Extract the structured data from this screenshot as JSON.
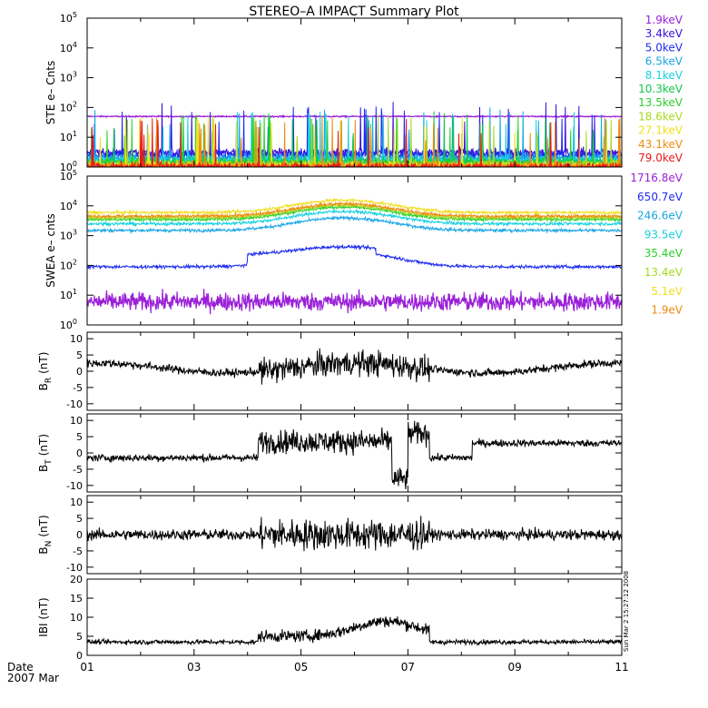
{
  "title": "STEREO–A IMPACT Summary Plot",
  "date_label": "Date",
  "month_label": "2007 Mar",
  "x_ticks": [
    "01",
    "03",
    "05",
    "07",
    "09",
    "11"
  ],
  "x_range_days": [
    1,
    11
  ],
  "timestamp": "Sun Mar  2 15:27:12 2008",
  "colors": {
    "axis": "#000000",
    "trace": "#000000",
    "background": "#ffffff"
  },
  "chart_data": [
    {
      "id": "ste",
      "type": "line",
      "ylabel": "STE e– Cnts",
      "log": true,
      "ylim_exp": [
        0,
        5
      ],
      "tick_exps": [
        0,
        1,
        2,
        3,
        4,
        5
      ],
      "series": [
        {
          "name": "1.9keV",
          "color": "#9a1fd8",
          "base": 50
        },
        {
          "name": "3.4keV",
          "color": "#3a10d8",
          "base": 3
        },
        {
          "name": "5.0keV",
          "color": "#1d2cf0",
          "base": 2.5
        },
        {
          "name": "6.5keV",
          "color": "#1aa6e6",
          "base": 2
        },
        {
          "name": "8.1keV",
          "color": "#18d0e0",
          "base": 1.7
        },
        {
          "name": "10.3keV",
          "color": "#12c84a",
          "base": 1.5
        },
        {
          "name": "13.5keV",
          "color": "#2ad02a",
          "base": 1.3
        },
        {
          "name": "18.6keV",
          "color": "#a8d820",
          "base": 1.2
        },
        {
          "name": "27.1keV",
          "color": "#f0e020",
          "base": 1.1
        },
        {
          "name": "43.1keV",
          "color": "#f08a10",
          "base": 1.05
        },
        {
          "name": "79.0keV",
          "color": "#e81818",
          "base": 1.0
        }
      ]
    },
    {
      "id": "swea",
      "type": "line",
      "ylabel": "SWEA e– cnts",
      "log": true,
      "ylim_exp": [
        0,
        5
      ],
      "tick_exps": [
        0,
        1,
        2,
        3,
        4,
        5
      ],
      "series": [
        {
          "name": "1716.8eV",
          "color": "#9a1fd8",
          "base": 6
        },
        {
          "name": "650.7eV",
          "color": "#1d2cf0",
          "base": 90
        },
        {
          "name": "246.6eV",
          "color": "#1aa6e6",
          "base": 1500
        },
        {
          "name": "93.5eV",
          "color": "#18d0e0",
          "base": 2500
        },
        {
          "name": "35.4eV",
          "color": "#2ad02a",
          "base": 3500
        },
        {
          "name": "13.4eV",
          "color": "#a8d820",
          "base": 4000
        },
        {
          "name": "5.1eV",
          "color": "#f0e020",
          "base": 6000
        },
        {
          "name": "1.9eV",
          "color": "#f08a10",
          "base": 4500
        }
      ]
    },
    {
      "id": "br",
      "type": "line",
      "ylabel": "B",
      "ylabel_sub": "R",
      "ylabel_unit": "(nT)",
      "ylim": [
        -12,
        12
      ],
      "ticks": [
        "10",
        "5",
        "0",
        "-5",
        "-10"
      ],
      "tick_values": [
        10,
        5,
        0,
        -5,
        -10
      ]
    },
    {
      "id": "bt",
      "type": "line",
      "ylabel": "B",
      "ylabel_sub": "T",
      "ylabel_unit": "(nT)",
      "ylim": [
        -12,
        12
      ],
      "ticks": [
        "10",
        "5",
        "0",
        "-5",
        "-10"
      ],
      "tick_values": [
        10,
        5,
        0,
        -5,
        -10
      ]
    },
    {
      "id": "bn",
      "type": "line",
      "ylabel": "B",
      "ylabel_sub": "N",
      "ylabel_unit": "(nT)",
      "ylim": [
        -12,
        12
      ],
      "ticks": [
        "10",
        "5",
        "0",
        "-5",
        "-10"
      ],
      "tick_values": [
        10,
        5,
        0,
        -5,
        -10
      ]
    },
    {
      "id": "bmag",
      "type": "line",
      "ylabel": "IBI (nT)",
      "ylim": [
        0,
        20
      ],
      "ticks": [
        "20",
        "15",
        "10",
        "5",
        "0"
      ],
      "tick_values": [
        20,
        15,
        10,
        5,
        0
      ]
    }
  ]
}
